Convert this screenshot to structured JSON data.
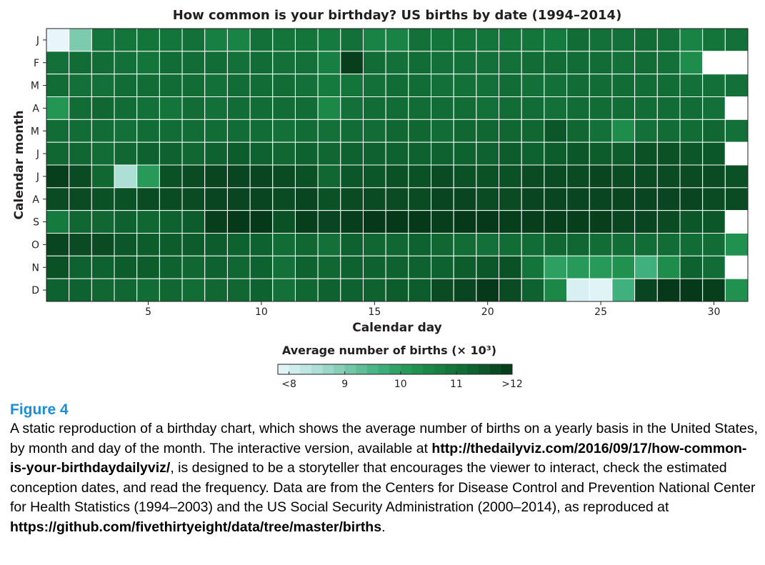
{
  "chart_data": {
    "type": "heatmap",
    "title": "How common is your birthday? US births by date (1994–2014)",
    "xlabel": "Calendar day",
    "ylabel": "Calendar month",
    "x": [
      1,
      2,
      3,
      4,
      5,
      6,
      7,
      8,
      9,
      10,
      11,
      12,
      13,
      14,
      15,
      16,
      17,
      18,
      19,
      20,
      21,
      22,
      23,
      24,
      25,
      26,
      27,
      28,
      29,
      30,
      31
    ],
    "x_ticks": [
      5,
      10,
      15,
      20,
      25,
      30
    ],
    "x_tick_labels": [
      "5",
      "10",
      "15",
      "20",
      "25",
      "30"
    ],
    "y_labels": [
      "J",
      "F",
      "M",
      "A",
      "M",
      "J",
      "J",
      "A",
      "S",
      "O",
      "N",
      "D"
    ],
    "value_unit": "Average number of births (× 10³)",
    "colorbar": {
      "range": [
        7.8,
        12.0
      ],
      "ticks": [
        8,
        9,
        10,
        11,
        12
      ],
      "tick_labels": [
        "<8",
        "9",
        "10",
        "11",
        ">12"
      ]
    },
    "values": [
      [
        7.8,
        9.0,
        10.9,
        10.9,
        10.9,
        10.9,
        11.0,
        10.7,
        10.6,
        11.0,
        10.9,
        10.9,
        10.8,
        11.0,
        10.6,
        10.6,
        11.0,
        10.9,
        10.9,
        10.9,
        10.9,
        10.9,
        10.8,
        11.1,
        11.0,
        11.0,
        11.1,
        11.0,
        10.6,
        10.9,
        11.0
      ],
      [
        11.0,
        11.1,
        11.1,
        11.0,
        10.9,
        11.1,
        11.1,
        11.1,
        11.0,
        11.1,
        11.0,
        11.0,
        10.7,
        11.9,
        11.1,
        11.0,
        11.1,
        11.0,
        11.0,
        11.0,
        11.0,
        11.1,
        11.1,
        11.1,
        11.1,
        11.0,
        11.1,
        11.0,
        10.4,
        null,
        null
      ],
      [
        11.1,
        11.0,
        11.0,
        11.1,
        11.1,
        11.1,
        11.1,
        11.0,
        11.1,
        11.1,
        11.1,
        11.0,
        10.8,
        10.9,
        11.0,
        11.1,
        11.1,
        11.0,
        11.0,
        11.0,
        11.1,
        11.0,
        11.0,
        11.1,
        11.1,
        11.1,
        11.1,
        11.1,
        11.0,
        11.0,
        11.0
      ],
      [
        10.2,
        11.1,
        11.2,
        11.1,
        11.0,
        10.9,
        11.1,
        11.0,
        11.1,
        11.1,
        11.1,
        11.1,
        10.5,
        11.0,
        11.1,
        11.1,
        11.1,
        11.1,
        11.1,
        11.0,
        11.1,
        11.1,
        11.0,
        11.1,
        11.1,
        11.1,
        11.1,
        11.1,
        11.1,
        11.0,
        null
      ],
      [
        11.1,
        11.1,
        11.1,
        11.0,
        11.1,
        11.1,
        11.1,
        11.1,
        11.1,
        11.1,
        11.0,
        11.1,
        11.0,
        11.1,
        11.1,
        11.2,
        11.2,
        11.1,
        11.2,
        11.2,
        11.2,
        11.2,
        11.5,
        11.2,
        11.0,
        10.4,
        11.0,
        11.1,
        11.1,
        11.2,
        11.0
      ],
      [
        11.2,
        11.2,
        11.1,
        11.2,
        11.3,
        11.3,
        11.2,
        11.3,
        11.4,
        11.3,
        11.2,
        11.3,
        11.2,
        11.3,
        11.3,
        11.3,
        11.3,
        11.3,
        11.3,
        11.3,
        11.4,
        11.3,
        11.4,
        11.5,
        11.4,
        11.4,
        11.6,
        11.6,
        11.5,
        11.5,
        null
      ],
      [
        11.9,
        11.7,
        11.2,
        8.5,
        10.1,
        11.6,
        11.7,
        11.8,
        11.8,
        11.8,
        11.7,
        11.6,
        11.2,
        11.5,
        11.5,
        11.6,
        11.6,
        11.7,
        11.6,
        11.6,
        11.6,
        11.7,
        11.7,
        11.7,
        11.8,
        11.7,
        11.7,
        11.7,
        11.7,
        11.7,
        11.6
      ],
      [
        11.7,
        11.7,
        11.6,
        11.6,
        11.7,
        11.7,
        11.7,
        11.8,
        11.8,
        11.8,
        11.7,
        11.8,
        11.6,
        11.7,
        11.7,
        11.7,
        11.7,
        11.8,
        11.8,
        11.7,
        11.7,
        11.8,
        11.8,
        11.8,
        11.8,
        11.8,
        11.8,
        11.8,
        11.8,
        11.7,
        11.7
      ],
      [
        10.8,
        11.2,
        11.2,
        11.3,
        11.2,
        11.3,
        11.4,
        11.9,
        12.0,
        12.0,
        11.6,
        11.9,
        11.8,
        11.9,
        12.0,
        12.0,
        12.0,
        11.9,
        12.0,
        12.0,
        11.9,
        11.9,
        11.9,
        11.9,
        11.9,
        11.8,
        11.8,
        11.7,
        11.5,
        11.5,
        null
      ],
      [
        11.8,
        11.7,
        11.7,
        11.5,
        11.4,
        11.4,
        11.4,
        11.4,
        11.3,
        11.3,
        11.1,
        11.2,
        11.0,
        11.3,
        11.2,
        11.2,
        11.3,
        11.2,
        11.1,
        11.0,
        11.1,
        11.1,
        11.2,
        11.2,
        11.1,
        11.1,
        11.1,
        11.1,
        11.1,
        11.1,
        10.3
      ],
      [
        11.6,
        11.3,
        11.3,
        11.4,
        11.4,
        11.3,
        11.2,
        11.3,
        11.2,
        11.3,
        11.0,
        11.3,
        11.2,
        11.3,
        11.3,
        11.3,
        11.3,
        11.3,
        11.4,
        11.5,
        11.6,
        10.9,
        10.0,
        10.1,
        10.1,
        10.3,
        9.6,
        10.4,
        11.3,
        11.1,
        null
      ],
      [
        11.3,
        11.3,
        11.2,
        11.2,
        11.1,
        11.2,
        11.1,
        11.2,
        11.2,
        11.3,
        11.0,
        11.2,
        11.3,
        11.3,
        11.3,
        11.4,
        11.4,
        11.7,
        11.8,
        12.0,
        11.7,
        11.3,
        10.5,
        8.0,
        7.9,
        9.6,
        11.8,
        12.0,
        12.0,
        11.9,
        10.3
      ]
    ]
  },
  "caption": {
    "label": "Figure 4",
    "text_1": "A static reproduction of a birthday chart, which shows the average number of births on a yearly basis in the United States, by month and day of the month. The interactive version, available at ",
    "link_1": "http://thedailyviz.com/2016/09/17/how-common-is-your-birthdaydailyviz/",
    "text_2": ", is designed to be a storyteller that encourages the viewer to interact, check the estimated conception dates, and read the frequency. Data are from the Centers for Disease Control and Prevention National Center for Health Statistics (1994–2003) and the US Social Security Administration (2000–2014), as reproduced at ",
    "link_2": "https://github.com/fivethirtyeight/data/tree/master/births",
    "text_3": "."
  },
  "colors": {
    "scale": [
      "#e8f6fb",
      "#b7e3de",
      "#7dcbaf",
      "#41b07f",
      "#229652",
      "#157a3e",
      "#0d5d2c",
      "#06391a"
    ],
    "missing": "#ffffff",
    "caption_label": "#1a8fd6"
  }
}
